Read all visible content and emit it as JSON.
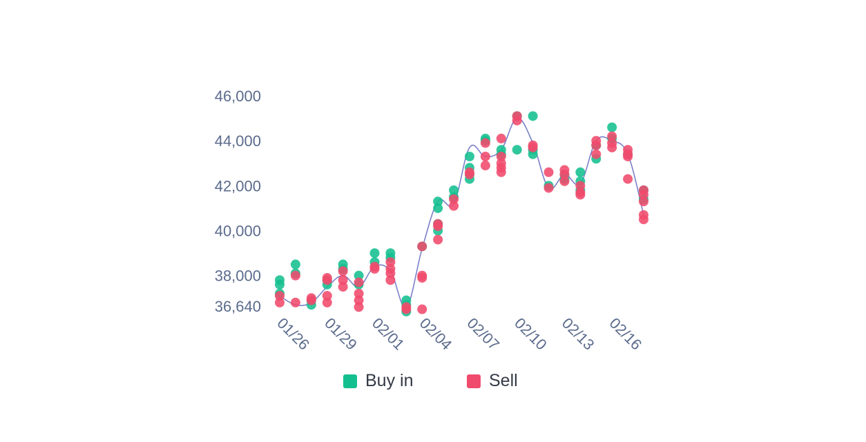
{
  "colors": {
    "buy": "#14bf8f",
    "sell": "#f04a6c",
    "line": "#7b7fc9",
    "text": "#5b6b8c"
  },
  "chart_data": {
    "type": "scatter",
    "title": "",
    "xlabel": "",
    "ylabel": "",
    "y_ticks": [
      36640,
      38000,
      40000,
      42000,
      44000,
      46000
    ],
    "y_tick_labels": [
      "36,640",
      "38,000",
      "40,000",
      "42,000",
      "44,000",
      "46,000"
    ],
    "ylim": [
      36640,
      46000
    ],
    "x_tick_labels": [
      "01/26",
      "01/29",
      "02/01",
      "02/04",
      "02/07",
      "02/10",
      "02/13",
      "02/16"
    ],
    "x_tick_days": [
      0,
      3,
      6,
      9,
      12,
      15,
      18,
      21
    ],
    "xlim": [
      0,
      23
    ],
    "legend": {
      "position": "bottom-center",
      "entries": [
        "Buy in",
        "Sell"
      ]
    },
    "series": [
      {
        "name": "Buy in",
        "points": [
          [
            0,
            37800
          ],
          [
            0,
            37600
          ],
          [
            0,
            37200
          ],
          [
            1,
            38500
          ],
          [
            1,
            38100
          ],
          [
            2,
            36700
          ],
          [
            2,
            36900
          ],
          [
            3,
            37600
          ],
          [
            3,
            37800
          ],
          [
            4,
            38500
          ],
          [
            4,
            38300
          ],
          [
            5,
            38000
          ],
          [
            5,
            37600
          ],
          [
            6,
            39000
          ],
          [
            6,
            38600
          ],
          [
            7,
            39000
          ],
          [
            7,
            38800
          ],
          [
            8,
            36700
          ],
          [
            8,
            36400
          ],
          [
            8,
            36900
          ],
          [
            9,
            39300
          ],
          [
            10,
            41300
          ],
          [
            10,
            41000
          ],
          [
            10,
            40300
          ],
          [
            10,
            40000
          ],
          [
            11,
            41800
          ],
          [
            11,
            41500
          ],
          [
            12,
            43300
          ],
          [
            12,
            42800
          ],
          [
            12,
            42500
          ],
          [
            12,
            42300
          ],
          [
            13,
            44100
          ],
          [
            13,
            44000
          ],
          [
            14,
            43600
          ],
          [
            14,
            43400
          ],
          [
            15,
            45100
          ],
          [
            15,
            43600
          ],
          [
            16,
            45100
          ],
          [
            16,
            43600
          ],
          [
            16,
            43400
          ],
          [
            17,
            42000
          ],
          [
            18,
            42500
          ],
          [
            18,
            42300
          ],
          [
            19,
            42600
          ],
          [
            19,
            42200
          ],
          [
            19,
            41800
          ],
          [
            20,
            43800
          ],
          [
            20,
            43200
          ],
          [
            21,
            44600
          ],
          [
            21,
            44100
          ],
          [
            22,
            43400
          ],
          [
            23,
            41800
          ],
          [
            23,
            41400
          ]
        ]
      },
      {
        "name": "Sell",
        "points": [
          [
            0,
            37100
          ],
          [
            0,
            36800
          ],
          [
            1,
            36800
          ],
          [
            1,
            38000
          ],
          [
            2,
            36900
          ],
          [
            2,
            37000
          ],
          [
            3,
            37800
          ],
          [
            3,
            37900
          ],
          [
            3,
            37100
          ],
          [
            3,
            36800
          ],
          [
            4,
            38200
          ],
          [
            4,
            37800
          ],
          [
            4,
            37500
          ],
          [
            5,
            37700
          ],
          [
            5,
            37200
          ],
          [
            5,
            36900
          ],
          [
            5,
            36600
          ],
          [
            6,
            38400
          ],
          [
            6,
            38300
          ],
          [
            7,
            38600
          ],
          [
            7,
            38300
          ],
          [
            7,
            38100
          ],
          [
            7,
            37800
          ],
          [
            8,
            36600
          ],
          [
            8,
            36500
          ],
          [
            9,
            39300
          ],
          [
            9,
            38000
          ],
          [
            9,
            37900
          ],
          [
            9,
            36500
          ],
          [
            10,
            40300
          ],
          [
            10,
            40200
          ],
          [
            10,
            39600
          ],
          [
            11,
            41100
          ],
          [
            11,
            41400
          ],
          [
            12,
            42500
          ],
          [
            12,
            42600
          ],
          [
            13,
            43900
          ],
          [
            13,
            43300
          ],
          [
            13,
            42900
          ],
          [
            14,
            44100
          ],
          [
            14,
            43300
          ],
          [
            14,
            43000
          ],
          [
            14,
            42800
          ],
          [
            14,
            42600
          ],
          [
            15,
            45100
          ],
          [
            15,
            44900
          ],
          [
            16,
            43800
          ],
          [
            16,
            43700
          ],
          [
            17,
            42600
          ],
          [
            17,
            41900
          ],
          [
            18,
            42700
          ],
          [
            18,
            42500
          ],
          [
            18,
            42200
          ],
          [
            19,
            42000
          ],
          [
            19,
            41700
          ],
          [
            19,
            41600
          ],
          [
            20,
            44000
          ],
          [
            20,
            43800
          ],
          [
            20,
            43400
          ],
          [
            21,
            44200
          ],
          [
            21,
            43900
          ],
          [
            21,
            43700
          ],
          [
            22,
            43600
          ],
          [
            22,
            43400
          ],
          [
            22,
            43300
          ],
          [
            22,
            42300
          ],
          [
            23,
            41800
          ],
          [
            23,
            41600
          ],
          [
            23,
            41300
          ],
          [
            23,
            40700
          ],
          [
            23,
            40500
          ]
        ]
      },
      {
        "name": "",
        "type": "line",
        "points": [
          [
            0,
            37100
          ],
          [
            1,
            36700
          ],
          [
            2,
            36800
          ],
          [
            3,
            37500
          ],
          [
            4,
            38000
          ],
          [
            5,
            37500
          ],
          [
            6,
            38400
          ],
          [
            7,
            38200
          ],
          [
            8,
            36600
          ],
          [
            9,
            39200
          ],
          [
            10,
            41300
          ],
          [
            11,
            41200
          ],
          [
            12,
            43700
          ],
          [
            13,
            43300
          ],
          [
            14,
            43600
          ],
          [
            15,
            45000
          ],
          [
            16,
            43900
          ],
          [
            17,
            41900
          ],
          [
            18,
            42500
          ],
          [
            19,
            42100
          ],
          [
            20,
            44000
          ],
          [
            21,
            44000
          ],
          [
            22,
            43400
          ],
          [
            23,
            40700
          ]
        ]
      }
    ]
  }
}
